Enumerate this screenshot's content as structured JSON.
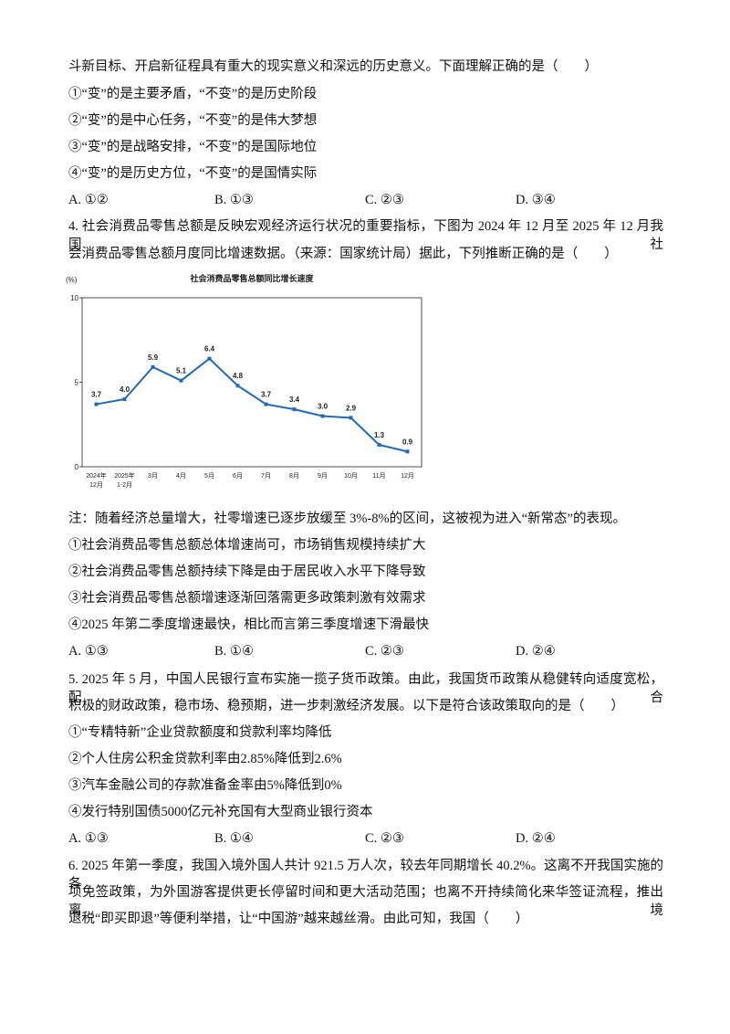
{
  "question3": {
    "stem": "斗新目标、开启新征程具有重大的现实意义和深远的历史意义。下面理解正确的是（　　）",
    "items": [
      "①“变”的是主要矛盾，“不变”的是历史阶段",
      "②“变”的是中心任务，“不变”的是伟大梦想",
      "③“变”的是战略安排，“不变”的是国际地位",
      "④“变”的是历史方位，“不变”的是国情实际"
    ],
    "options": [
      "A. ①②",
      "B. ①③",
      "C. ②③",
      "D. ③④"
    ]
  },
  "question4": {
    "stem": [
      "4. 社会消费品零售总额是反映宏观经济运行状况的重要指标，下图为 2024 年 12 月至 2025 年 12 月我国社",
      "会消费品零售总额月度同比增速数据。（来源：国家统计局）据此，下列推断正确的是（　　）"
    ],
    "note": "注：随着经济总量增大，社零增速已逐步放缓至 3%-8%的区间，这被视为进入“新常态”的表现。",
    "items": [
      "①社会消费品零售总额总体增速尚可，市场销售规模持续扩大",
      "②社会消费品零售总额持续下降是由于居民收入水平下降导致",
      "③社会消费品零售总额增速逐渐回落需更多政策刺激有效需求",
      "④2025 年第二季度增速最快，相比而言第三季度增速下滑最快"
    ],
    "options": [
      "A. ①③",
      "B. ①④",
      "C. ②③",
      "D. ②④"
    ]
  },
  "chart_data": {
    "type": "line",
    "title": "社会消费品零售总额同比增长速度",
    "y_label": "(%)",
    "categories": [
      "2024年\n12月",
      "2025年\n1-2月",
      "3月",
      "4月",
      "5月",
      "6月",
      "7月",
      "8月",
      "9月",
      "10月",
      "11月",
      "12月"
    ],
    "values": [
      3.7,
      4.0,
      5.9,
      5.1,
      6.4,
      4.8,
      3.7,
      3.4,
      3.0,
      2.9,
      1.3,
      0.9
    ],
    "value_labels": [
      "3.7",
      "4.0",
      "5.9",
      "5.1",
      "6.4",
      "4.8",
      "3.7",
      "3.4",
      "3.0",
      "2.9",
      "1.3",
      "0.9"
    ],
    "color": "#1f6bb5",
    "ylim": [
      0,
      10
    ],
    "yticks": [
      0,
      5,
      10
    ],
    "grid": false
  },
  "question5": {
    "stem": [
      "5. 2025 年 5 月，中国人民银行宣布实施一揽子货币政策。由此，我国货币政策从稳健转向适度宽松，配合",
      "积极的财政政策，稳市场、稳预期，进一步刺激经济发展。以下是符合该政策取向的是（　　）"
    ],
    "items": [
      "①“专精特新”企业贷款额度和贷款利率均降低",
      "②个人住房公积金贷款利率由2.85%降低到2.6%",
      "③汽车金融公司的存款准备金率由5%降低到0%",
      "④发行特别国债5000亿元补充国有大型商业银行资本"
    ],
    "options": [
      "A. ①③",
      "B. ①④",
      "C. ②③",
      "D. ②④"
    ]
  },
  "question6": {
    "stem": [
      "6. 2025 年第一季度，我国入境外国人共计 921.5 万人次，较去年同期增长 40.2%。这离不开我国实施的各",
      "项免签政策，为外国游客提供更长停留时间和更大活动范围；也离不开持续简化来华签证流程，推出离境",
      "退税“即买即退”等便利举措，让“中国游”越来越丝滑。由此可知，我国（　　）"
    ]
  }
}
